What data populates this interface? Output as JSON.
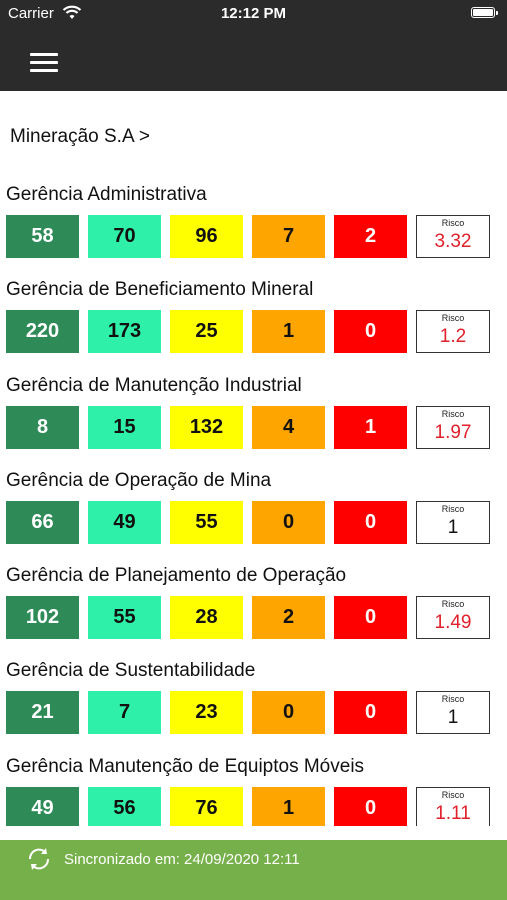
{
  "status_bar": {
    "carrier": "Carrier",
    "time": "12:12 PM",
    "icons": [
      "wifi-icon",
      "battery-icon"
    ]
  },
  "nav": {
    "menu_icon": "hamburger-menu-icon"
  },
  "breadcrumb": "Mineração S.A >",
  "colors": {
    "level1": "#2e8b57",
    "level2": "#2ef0a8",
    "level3": "#ffff00",
    "level4": "#ffa500",
    "level5": "#ff0000",
    "risk_alert": "#e0202a",
    "risk_normal": "#111111",
    "footer": "#76b04a",
    "header": "#2b2b2b"
  },
  "groups": [
    {
      "name": "Gerência Administrativa",
      "values": [
        "58",
        "70",
        "96",
        "7",
        "2"
      ],
      "risk_label": "Risco",
      "risk": "3.32",
      "risk_alert": true
    },
    {
      "name": "Gerência de Beneficiamento Mineral",
      "values": [
        "220",
        "173",
        "25",
        "1",
        "0"
      ],
      "risk_label": "Risco",
      "risk": "1.2",
      "risk_alert": true
    },
    {
      "name": "Gerência de Manutenção Industrial",
      "values": [
        "8",
        "15",
        "132",
        "4",
        "1"
      ],
      "risk_label": "Risco",
      "risk": "1.97",
      "risk_alert": true
    },
    {
      "name": "Gerência de Operação de Mina",
      "values": [
        "66",
        "49",
        "55",
        "0",
        "0"
      ],
      "risk_label": "Risco",
      "risk": "1",
      "risk_alert": false
    },
    {
      "name": "Gerência de Planejamento de Operação",
      "values": [
        "102",
        "55",
        "28",
        "2",
        "0"
      ],
      "risk_label": "Risco",
      "risk": "1.49",
      "risk_alert": true
    },
    {
      "name": "Gerência de Sustentabilidade",
      "values": [
        "21",
        "7",
        "23",
        "0",
        "0"
      ],
      "risk_label": "Risco",
      "risk": "1",
      "risk_alert": false
    },
    {
      "name": "Gerência Manutenção de Equiptos Móveis",
      "values": [
        "49",
        "56",
        "76",
        "1",
        "0"
      ],
      "risk_label": "Risco",
      "risk": "1.11",
      "risk_alert": true
    }
  ],
  "footer": {
    "sync_icon": "sync-icon",
    "sync_text": "Sincronizado em: 24/09/2020 12:11"
  }
}
